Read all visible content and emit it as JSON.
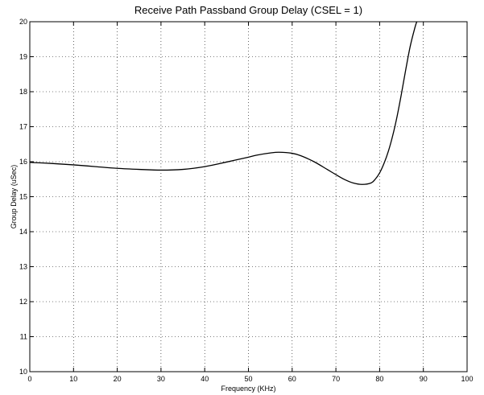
{
  "chart_data": {
    "type": "line",
    "title": "Receive Path Passband Group Delay (CSEL = 1)",
    "xlabel": "Frequency (KHz)",
    "ylabel": "Group Delay (uSec)",
    "xlim": [
      0,
      100
    ],
    "ylim": [
      10,
      20
    ],
    "grid": true,
    "x_ticks": [
      "0",
      "10",
      "20",
      "30",
      "40",
      "50",
      "60",
      "70",
      "80",
      "90",
      "100"
    ],
    "y_ticks": [
      "10",
      "11",
      "12",
      "13",
      "14",
      "15",
      "16",
      "17",
      "18",
      "19",
      "20"
    ],
    "series": [
      {
        "x": [
          0,
          5,
          10,
          15,
          20,
          25,
          30,
          35,
          40,
          45,
          50,
          52,
          55,
          57,
          60,
          62,
          65,
          68,
          70,
          72,
          74,
          76,
          78,
          79,
          80,
          81,
          82,
          83,
          84,
          85,
          86,
          87,
          88,
          88.5,
          89
        ],
        "y": [
          15.98,
          15.95,
          15.91,
          15.86,
          15.81,
          15.78,
          15.76,
          15.78,
          15.86,
          15.99,
          16.13,
          16.19,
          16.25,
          16.27,
          16.24,
          16.17,
          16.0,
          15.78,
          15.63,
          15.49,
          15.39,
          15.35,
          15.39,
          15.5,
          15.68,
          15.95,
          16.3,
          16.75,
          17.3,
          17.95,
          18.65,
          19.3,
          19.8,
          20.0,
          20.1
        ]
      }
    ]
  }
}
